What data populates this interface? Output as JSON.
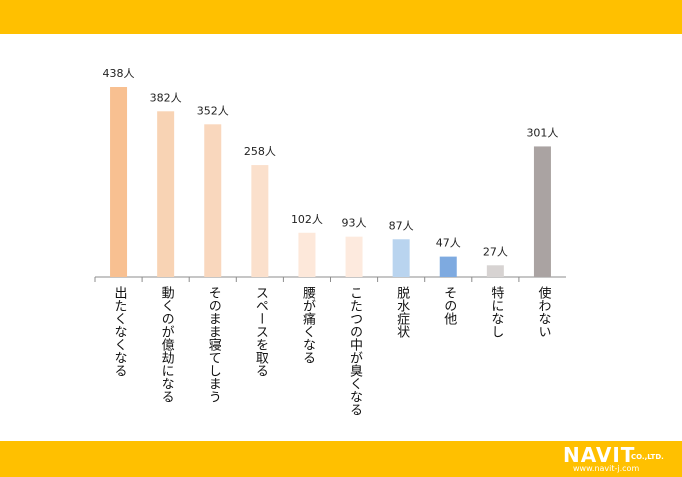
{
  "chart_data": {
    "type": "bar",
    "categories": [
      "出たくなくなる",
      "動くのが億劫になる",
      "そのまま寝てしまう",
      "スペースを取る",
      "腰が痛くなる",
      "こたつの中が臭くなる",
      "脱水症状",
      "その他",
      "特になし",
      "使わない"
    ],
    "values": [
      438,
      382,
      352,
      258,
      102,
      93,
      87,
      47,
      27,
      301
    ],
    "value_labels": [
      "438人",
      "382人",
      "352人",
      "258人",
      "102人",
      "93人",
      "87人",
      "47人",
      "27人",
      "301人"
    ],
    "colors": [
      "#f8c091",
      "#f8d3b4",
      "#f9d7bd",
      "#fbe0cc",
      "#fde8da",
      "#fdeade",
      "#b9d4ef",
      "#7eaae0",
      "#d7d3d2",
      "#aaa3a2"
    ],
    "ylim": [
      0,
      438
    ],
    "grid": false,
    "title": "",
    "xlabel": "",
    "ylabel": ""
  },
  "brand": {
    "name": "NAVIT",
    "suffix": "CO.,LTD.",
    "url": "www.navit-j.com"
  },
  "accent_color": "#ffc000"
}
